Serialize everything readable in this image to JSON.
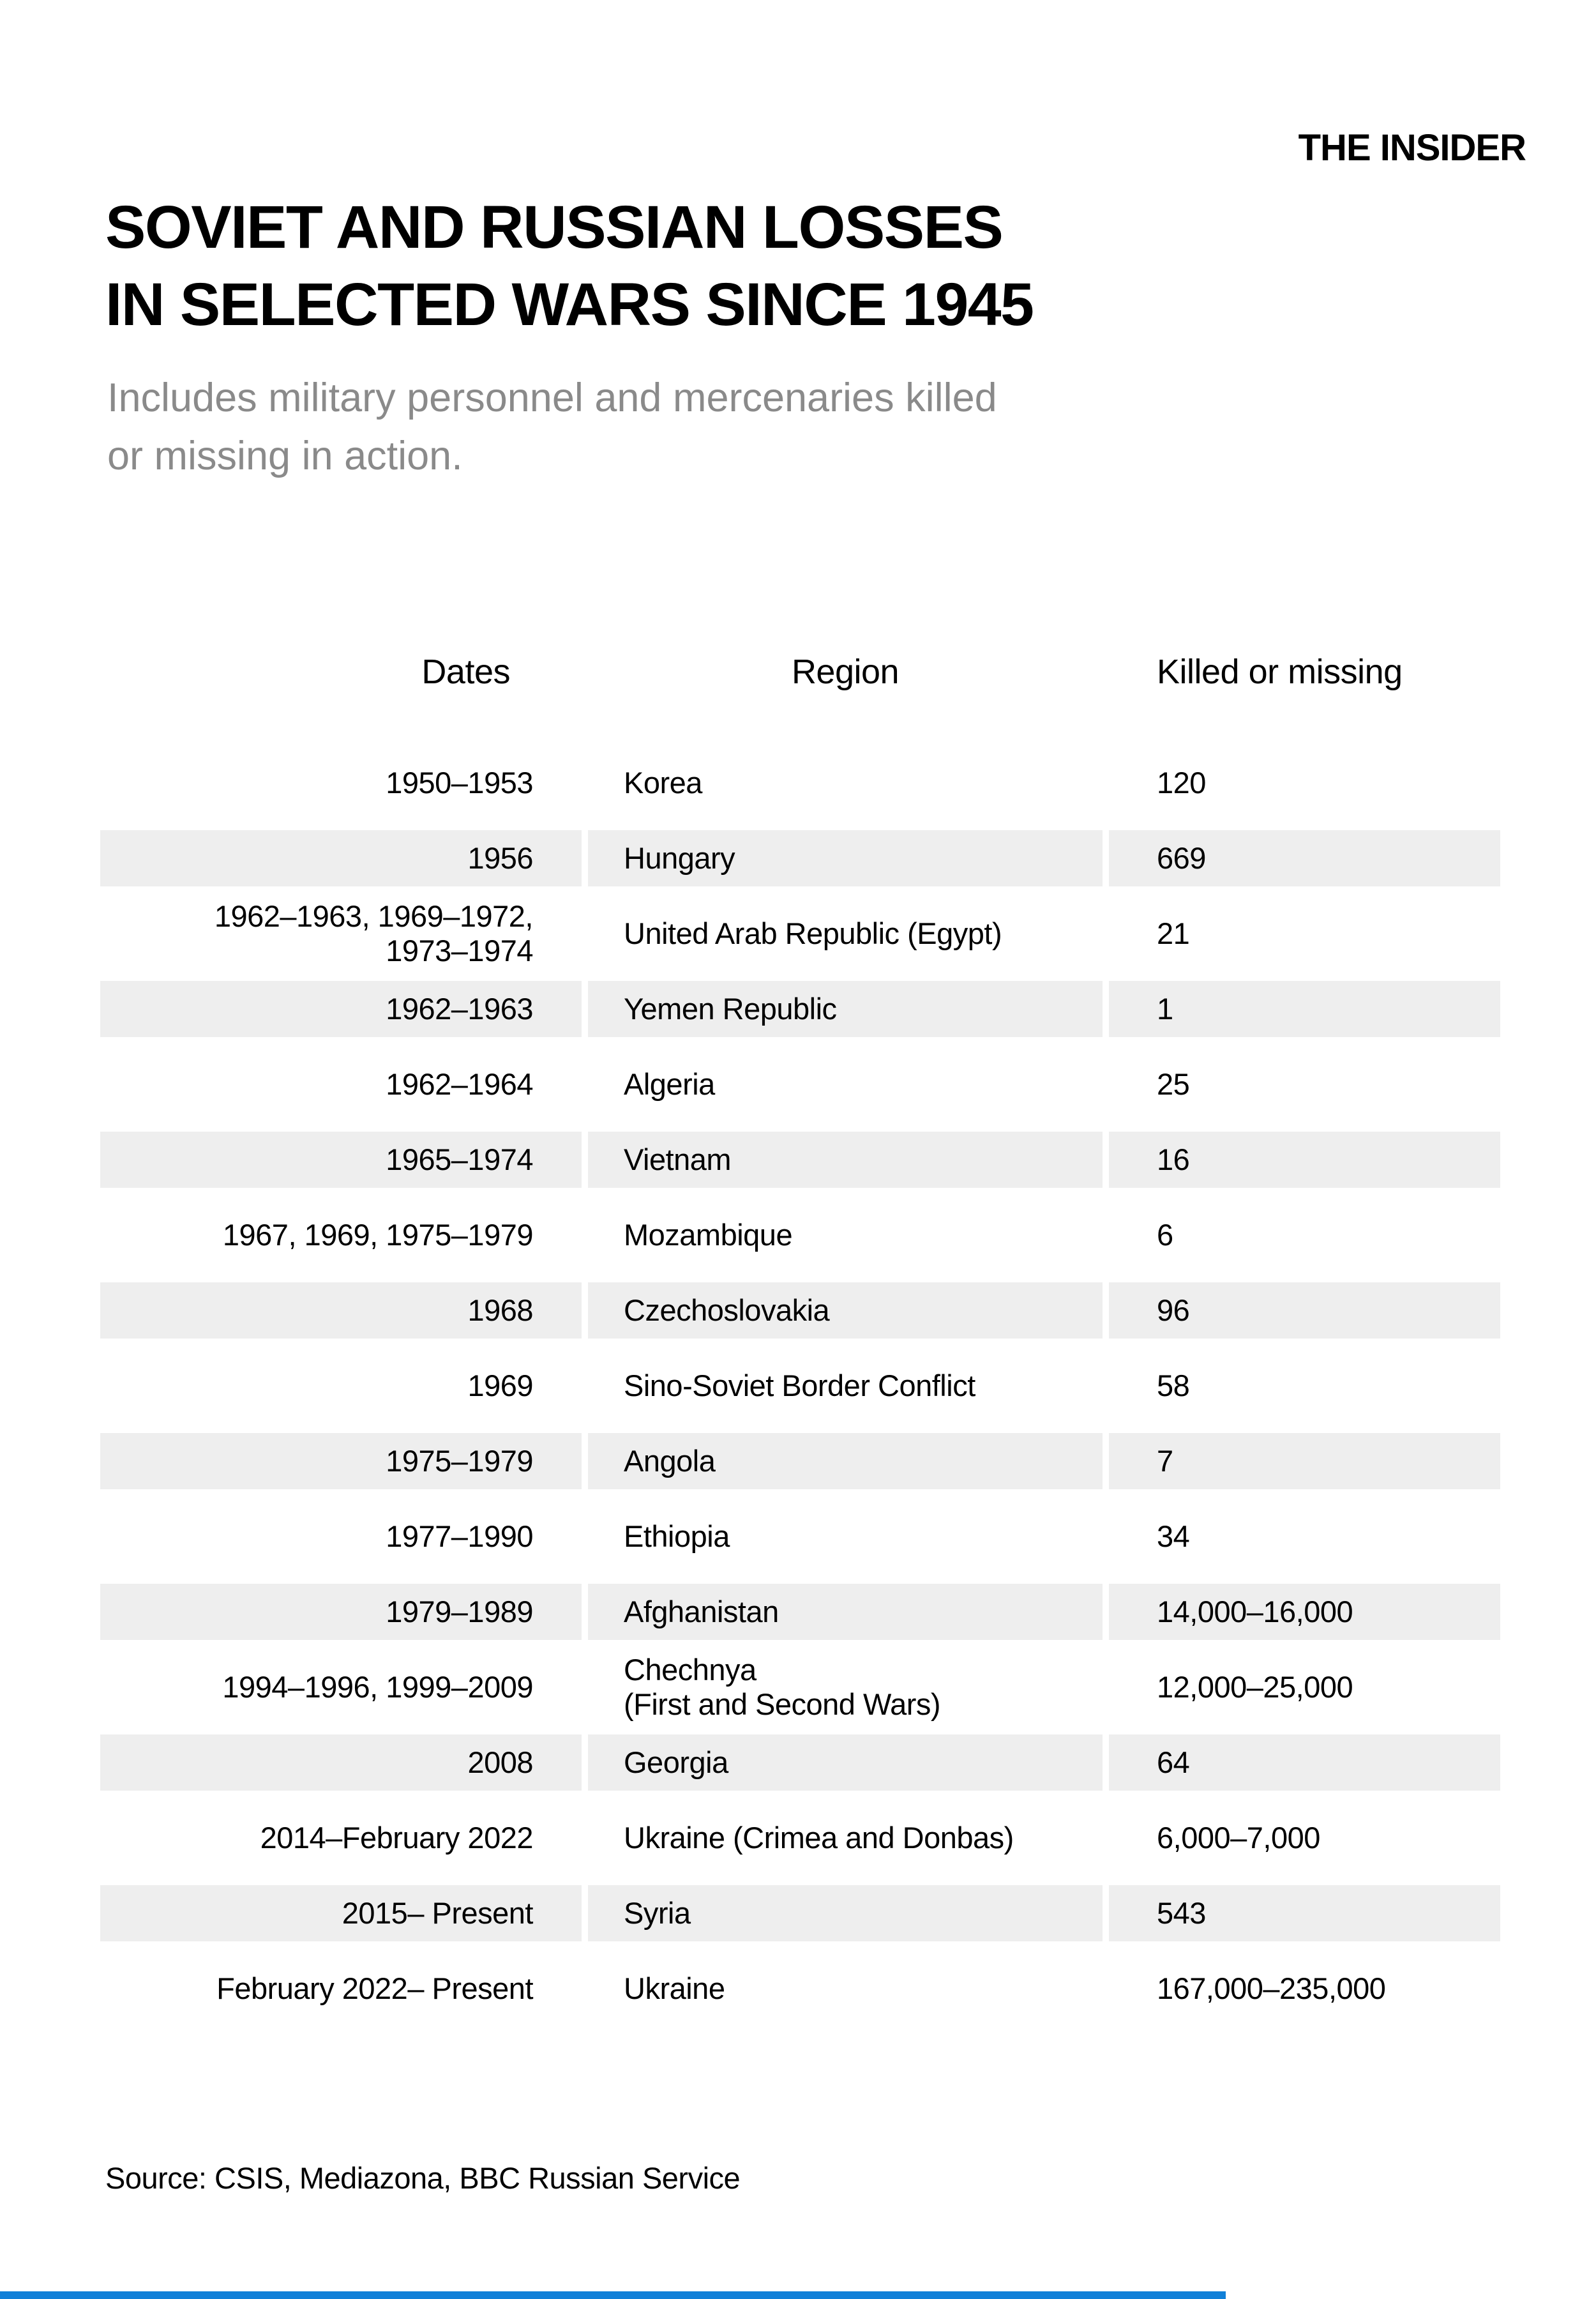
{
  "brand": {
    "logo": "THE INSIDER"
  },
  "header": {
    "title": "SOVIET AND RUSSIAN LOSSES\nIN SELECTED WARS SINCE 1945",
    "subtitle": "Includes military personnel and mercenaries killed\nor missing in action."
  },
  "table": {
    "columns": [
      "Dates",
      "Region",
      "Killed or missing"
    ],
    "rows": [
      {
        "dates": "1950–1953",
        "region": "Korea",
        "killed": "120",
        "shaded": false
      },
      {
        "dates": "1956",
        "region": "Hungary",
        "killed": "669",
        "shaded": true
      },
      {
        "dates": "1962–1963, 1969–1972,\n1973–1974",
        "region": "United Arab Republic (Egypt)",
        "killed": "21",
        "shaded": false
      },
      {
        "dates": "1962–1963",
        "region": "Yemen Republic",
        "killed": "1",
        "shaded": true
      },
      {
        "dates": "1962–1964",
        "region": "Algeria",
        "killed": "25",
        "shaded": false
      },
      {
        "dates": "1965–1974",
        "region": "Vietnam",
        "killed": "16",
        "shaded": true
      },
      {
        "dates": "1967, 1969, 1975–1979",
        "region": "Mozambique",
        "killed": "6",
        "shaded": false
      },
      {
        "dates": "1968",
        "region": "Czechoslovakia",
        "killed": "96",
        "shaded": true
      },
      {
        "dates": "1969",
        "region": "Sino-Soviet Border Conflict",
        "killed": "58",
        "shaded": false
      },
      {
        "dates": "1975–1979",
        "region": "Angola",
        "killed": "7",
        "shaded": true
      },
      {
        "dates": "1977–1990",
        "region": "Ethiopia",
        "killed": "34",
        "shaded": false
      },
      {
        "dates": "1979–1989",
        "region": "Afghanistan",
        "killed": "14,000–16,000",
        "shaded": true
      },
      {
        "dates": "1994–1996, 1999–2009",
        "region": "Chechnya\n(First and Second Wars)",
        "killed": "12,000–25,000",
        "shaded": false
      },
      {
        "dates": "2008",
        "region": "Georgia",
        "killed": "64",
        "shaded": true
      },
      {
        "dates": "2014–February 2022",
        "region": "Ukraine (Crimea and Donbas)",
        "killed": "6,000–7,000",
        "shaded": false
      },
      {
        "dates": "2015– Present",
        "region": "Syria",
        "killed": "543",
        "shaded": true
      },
      {
        "dates": "February 2022– Present",
        "region": "Ukraine",
        "killed": "167,000–235,000",
        "shaded": false
      }
    ]
  },
  "footer": {
    "source": "Source: CSIS, Mediazona, BBC Russian Service"
  },
  "colors": {
    "row_shade": "#eeeeee",
    "subtitle_gray": "#8a8a8a",
    "accent_bar_blue": "#1180d8",
    "text": "#000000"
  },
  "chart_data": {
    "type": "table",
    "title": "SOVIET AND RUSSIAN LOSSES IN SELECTED WARS SINCE 1945",
    "subtitle": "Includes military personnel and mercenaries killed or missing in action.",
    "columns": [
      "Dates",
      "Region",
      "Killed or missing"
    ],
    "rows": [
      [
        "1950–1953",
        "Korea",
        "120"
      ],
      [
        "1956",
        "Hungary",
        "669"
      ],
      [
        "1962–1963, 1969–1972, 1973–1974",
        "United Arab Republic (Egypt)",
        "21"
      ],
      [
        "1962–1963",
        "Yemen Republic",
        "1"
      ],
      [
        "1962–1964",
        "Algeria",
        "25"
      ],
      [
        "1965–1974",
        "Vietnam",
        "16"
      ],
      [
        "1967, 1969, 1975–1979",
        "Mozambique",
        "6"
      ],
      [
        "1968",
        "Czechoslovakia",
        "96"
      ],
      [
        "1969",
        "Sino-Soviet Border Conflict",
        "58"
      ],
      [
        "1975–1979",
        "Angola",
        "7"
      ],
      [
        "1977–1990",
        "Ethiopia",
        "34"
      ],
      [
        "1979–1989",
        "Afghanistan",
        "14,000–16,000"
      ],
      [
        "1994–1996, 1999–2009",
        "Chechnya (First and Second Wars)",
        "12,000–25,000"
      ],
      [
        "2008",
        "Georgia",
        "64"
      ],
      [
        "2014–February 2022",
        "Ukraine (Crimea and Donbas)",
        "6,000–7,000"
      ],
      [
        "2015– Present",
        "Syria",
        "543"
      ],
      [
        "February 2022– Present",
        "Ukraine",
        "167,000–235,000"
      ]
    ],
    "source": "Source: CSIS, Mediazona, BBC Russian Service",
    "layout": {
      "zebra_striping": true,
      "grid": false,
      "legend": "none"
    }
  }
}
